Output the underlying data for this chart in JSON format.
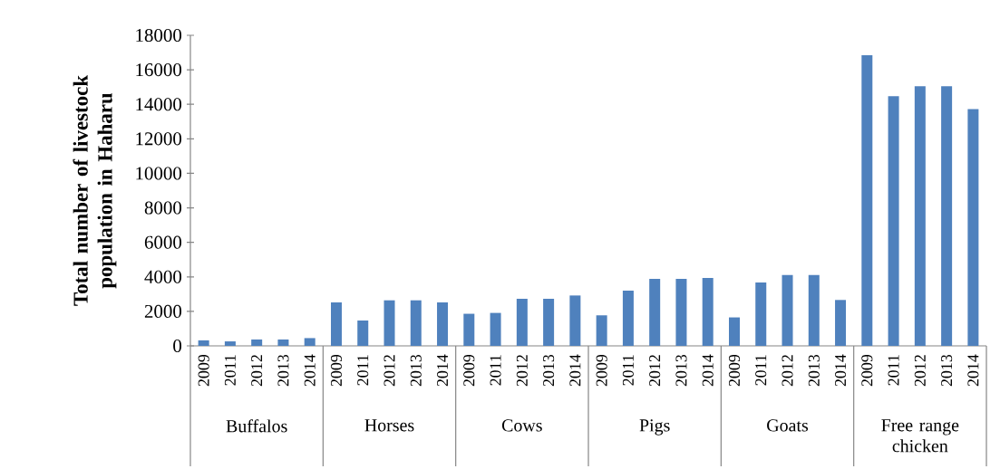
{
  "chart_data": {
    "type": "bar",
    "ylabel": "Total number of livestock population in Haharu",
    "categories": [
      "2009",
      "2011",
      "2012",
      "2013",
      "2014",
      "2009",
      "2011",
      "2012",
      "2013",
      "2014",
      "2009",
      "2011",
      "2012",
      "2013",
      "2014",
      "2009",
      "2011",
      "2012",
      "2013",
      "2014",
      "2009",
      "2011",
      "2012",
      "2013",
      "2014",
      "2009",
      "2011",
      "2012",
      "2013",
      "2014"
    ],
    "values": [
      320,
      260,
      370,
      370,
      450,
      2520,
      1470,
      2640,
      2640,
      2520,
      1860,
      1910,
      2730,
      2730,
      2920,
      1770,
      3200,
      3890,
      3890,
      3940,
      1650,
      3680,
      4100,
      4100,
      2660,
      16840,
      14470,
      15050,
      15050,
      13720
    ],
    "color": "#4f81bd",
    "ylim": [
      0,
      18000
    ],
    "yticks": [
      0,
      2000,
      4000,
      6000,
      8000,
      10000,
      12000,
      14000,
      16000,
      18000
    ],
    "annotations": [
      "Buffalos",
      "Horses",
      "Cows",
      "Pigs",
      "Goats",
      "Free range chicken"
    ],
    "grid": false
  }
}
